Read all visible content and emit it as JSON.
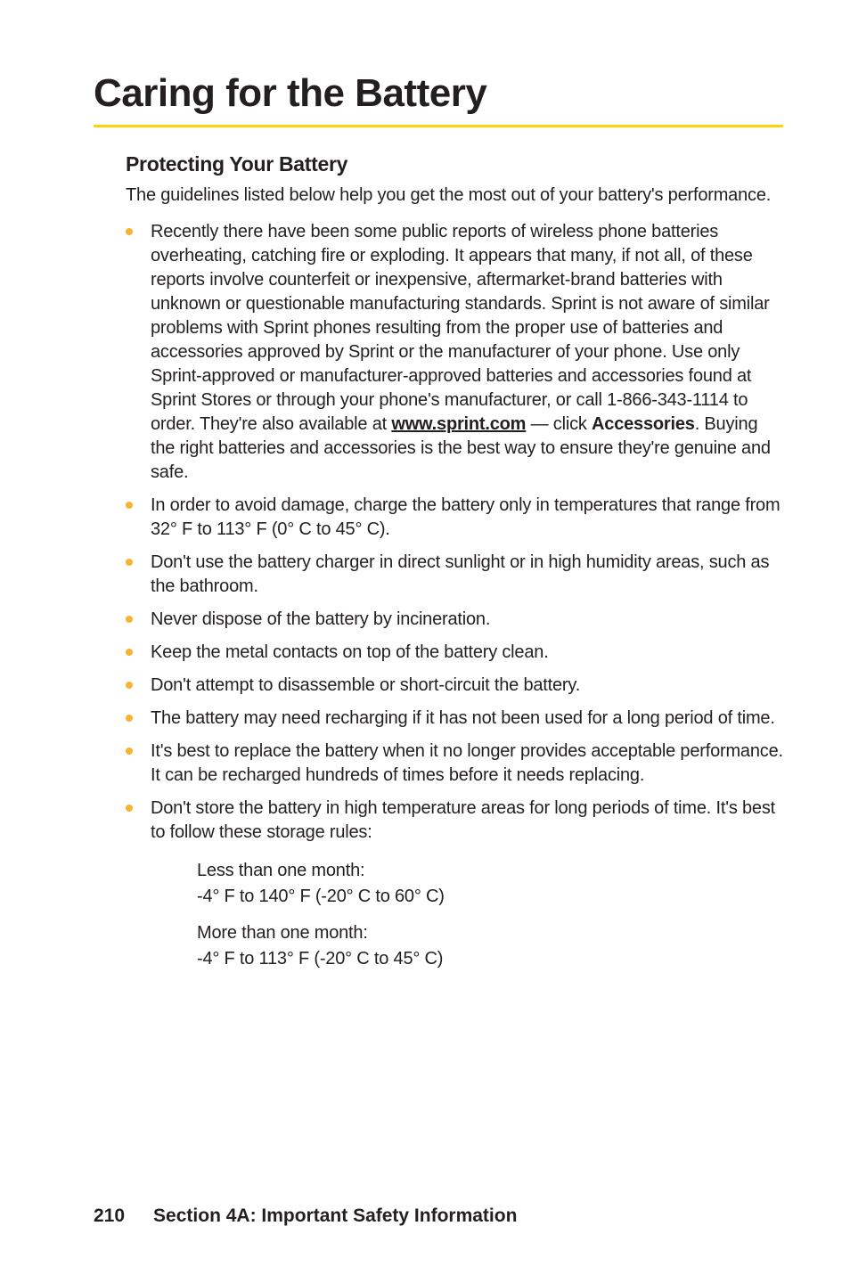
{
  "title": "Caring for the Battery",
  "subtitle": "Protecting Your Battery",
  "intro": "The guidelines listed below help you get the most out of your battery's performance.",
  "bullets": {
    "b1_a": "Recently there have been some public reports of wireless phone batteries overheating, catching fire or exploding. It appears that many, if not all, of these reports involve counterfeit or inexpensive, aftermarket-brand batteries with unknown or questionable manufacturing standards. Sprint is not aware of similar problems with Sprint phones resulting from the proper use of batteries and accessories approved by Sprint or the manufacturer of your phone. Use only Sprint-approved or manufacturer-approved batteries and accessories found at Sprint Stores or through your phone's manufacturer, or call 1-866-343-1114 to order. They're also available at ",
    "b1_link": "www.sprint.com",
    "b1_b": " — click ",
    "b1_bold": "Accessories",
    "b1_c": ". Buying the right batteries and accessories is the best way to ensure they're genuine and safe.",
    "b2": "In order to avoid damage, charge the battery only in temperatures that range from 32° F to 113° F (0° C to 45° C).",
    "b3": "Don't use the battery charger in direct sunlight or in high humidity areas, such as the bathroom.",
    "b4": "Never dispose of the battery by incineration.",
    "b5": "Keep the metal contacts on top of the battery clean.",
    "b6": "Don't attempt to disassemble or short-circuit the battery.",
    "b7": "The battery may need recharging if it has not been used for a long period of time.",
    "b8": "It's best to replace the battery when it no longer provides acceptable performance. It can be recharged hundreds of times before it needs replacing.",
    "b9": "Don't store the battery in high temperature areas for long periods of time. It's best to follow these storage rules:"
  },
  "storage": {
    "s1a": "Less than one month:",
    "s1b": "-4° F to 140° F (-20° C to 60° C)",
    "s2a": "More than one month:",
    "s2b": "-4° F to 113° F (-20° C to 45° C)"
  },
  "footer": {
    "page": "210",
    "section": "Section 4A: Important Safety Information"
  },
  "colors": {
    "rule": "#ffd400",
    "bullet": "#f9b233",
    "text": "#231f20"
  }
}
